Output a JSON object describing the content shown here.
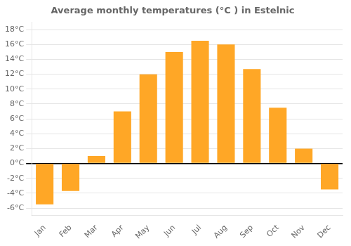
{
  "chart_data": {
    "type": "bar",
    "title": "Average monthly temperatures (°C ) in Estelnic",
    "categories": [
      "Jan",
      "Feb",
      "Mar",
      "Apr",
      "May",
      "Jun",
      "Jul",
      "Aug",
      "Sep",
      "Oct",
      "Nov",
      "Dec"
    ],
    "values": [
      -5.5,
      -3.7,
      1.0,
      7.0,
      12.0,
      15.0,
      16.5,
      16.0,
      12.7,
      7.5,
      2.0,
      -3.5
    ],
    "color": "#FFA726",
    "ylim": [
      -7,
      19
    ],
    "yticks": [
      {
        "value": -6,
        "label": "-6°C"
      },
      {
        "value": -4,
        "label": "-4°C"
      },
      {
        "value": -2,
        "label": "-2°C"
      },
      {
        "value": 0,
        "label": "0°C"
      },
      {
        "value": 2,
        "label": "2°C"
      },
      {
        "value": 4,
        "label": "4°C"
      },
      {
        "value": 6,
        "label": "6°C"
      },
      {
        "value": 8,
        "label": "8°C"
      },
      {
        "value": 10,
        "label": "10°C"
      },
      {
        "value": 12,
        "label": "12°C"
      },
      {
        "value": 14,
        "label": "14°C"
      },
      {
        "value": 16,
        "label": "16°C"
      },
      {
        "value": 18,
        "label": "18°C"
      }
    ],
    "grid": true
  }
}
